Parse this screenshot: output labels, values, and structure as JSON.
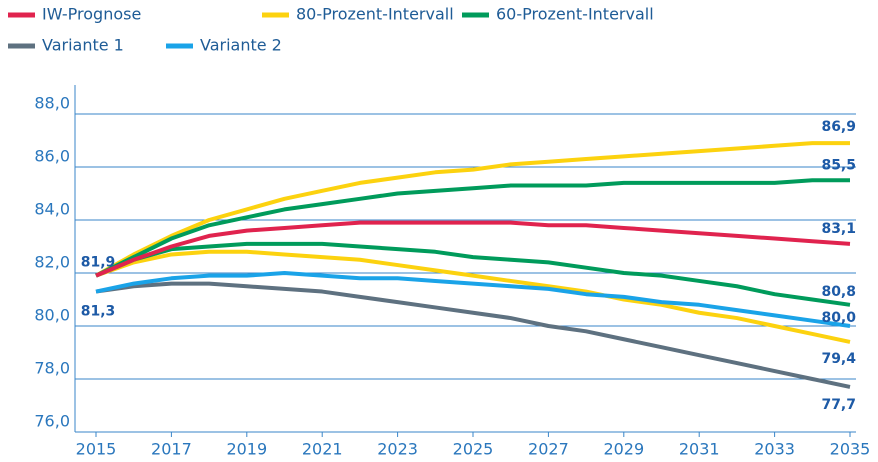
{
  "chart_data": {
    "type": "line",
    "x": [
      2015,
      2016,
      2017,
      2018,
      2019,
      2020,
      2021,
      2022,
      2023,
      2024,
      2025,
      2026,
      2027,
      2028,
      2029,
      2030,
      2031,
      2032,
      2033,
      2034,
      2035
    ],
    "xlim": [
      2015,
      2035
    ],
    "xticks": [
      2015,
      2017,
      2019,
      2021,
      2023,
      2025,
      2027,
      2029,
      2031,
      2033,
      2035
    ],
    "ylim": [
      76,
      88
    ],
    "yticks": [
      {
        "value": 76,
        "label": "76,0"
      },
      {
        "value": 78,
        "label": "78,0"
      },
      {
        "value": 80,
        "label": "80,0"
      },
      {
        "value": 82,
        "label": "82,0"
      },
      {
        "value": 84,
        "label": "84,0"
      },
      {
        "value": 86,
        "label": "86,0"
      },
      {
        "value": 88,
        "label": "88,0"
      }
    ],
    "grid": true,
    "series": [
      {
        "name": "IW-Prognose",
        "color": "#e0234e",
        "values": [
          81.9,
          82.5,
          83.0,
          83.4,
          83.6,
          83.7,
          83.8,
          83.9,
          83.9,
          83.9,
          83.9,
          83.9,
          83.8,
          83.8,
          83.7,
          83.6,
          83.5,
          83.4,
          83.3,
          83.2,
          83.1
        ],
        "value_labels": [
          "81,9",
          null,
          null,
          null,
          null,
          null,
          null,
          null,
          null,
          null,
          null,
          null,
          null,
          null,
          null,
          null,
          null,
          null,
          null,
          null,
          "83,1"
        ]
      },
      {
        "name": "80-Prozent-Intervall",
        "color": "#fcd20f",
        "values": [
          81.9,
          82.7,
          83.4,
          84.0,
          84.4,
          84.8,
          85.1,
          85.4,
          85.6,
          85.8,
          85.9,
          86.1,
          86.2,
          86.3,
          86.4,
          86.5,
          86.6,
          86.7,
          86.8,
          86.9,
          86.9
        ],
        "value_labels": [
          null,
          null,
          null,
          null,
          null,
          null,
          null,
          null,
          null,
          null,
          null,
          null,
          null,
          null,
          null,
          null,
          null,
          null,
          null,
          null,
          "86,9"
        ],
        "lower_values": [
          81.9,
          82.4,
          82.7,
          82.8,
          82.8,
          82.7,
          82.6,
          82.5,
          82.3,
          82.1,
          81.9,
          81.7,
          81.5,
          81.3,
          81.0,
          80.8,
          80.5,
          80.3,
          80.0,
          79.7,
          79.4
        ],
        "lower_value_labels": [
          null,
          null,
          null,
          null,
          null,
          null,
          null,
          null,
          null,
          null,
          null,
          null,
          null,
          null,
          null,
          null,
          null,
          null,
          null,
          null,
          "79,4"
        ]
      },
      {
        "name": "60-Prozent-Intervall",
        "color": "#009b5b",
        "values": [
          81.9,
          82.6,
          83.3,
          83.8,
          84.1,
          84.4,
          84.6,
          84.8,
          85.0,
          85.1,
          85.2,
          85.3,
          85.3,
          85.3,
          85.4,
          85.4,
          85.4,
          85.4,
          85.4,
          85.5,
          85.5
        ],
        "value_labels": [
          null,
          null,
          null,
          null,
          null,
          null,
          null,
          null,
          null,
          null,
          null,
          null,
          null,
          null,
          null,
          null,
          null,
          null,
          null,
          null,
          "85,5"
        ],
        "lower_values": [
          81.9,
          82.5,
          82.9,
          83.0,
          83.1,
          83.1,
          83.1,
          83.0,
          82.9,
          82.8,
          82.6,
          82.5,
          82.4,
          82.2,
          82.0,
          81.9,
          81.7,
          81.5,
          81.2,
          81.0,
          80.8
        ],
        "lower_value_labels": [
          null,
          null,
          null,
          null,
          null,
          null,
          null,
          null,
          null,
          null,
          null,
          null,
          null,
          null,
          null,
          null,
          null,
          null,
          null,
          null,
          "80,8"
        ]
      },
      {
        "name": "Variante 1",
        "color": "#5e7180",
        "values": [
          81.3,
          81.5,
          81.6,
          81.6,
          81.5,
          81.4,
          81.3,
          81.1,
          80.9,
          80.7,
          80.5,
          80.3,
          80.0,
          79.8,
          79.5,
          79.2,
          78.9,
          78.6,
          78.3,
          78.0,
          77.7
        ],
        "value_labels": [
          "81,3",
          null,
          null,
          null,
          null,
          null,
          null,
          null,
          null,
          null,
          null,
          null,
          null,
          null,
          null,
          null,
          null,
          null,
          null,
          null,
          "77,7"
        ]
      },
      {
        "name": "Variante 2",
        "color": "#1aa3e8",
        "values": [
          81.3,
          81.6,
          81.8,
          81.9,
          81.9,
          82.0,
          81.9,
          81.8,
          81.8,
          81.7,
          81.6,
          81.5,
          81.4,
          81.2,
          81.1,
          80.9,
          80.8,
          80.6,
          80.4,
          80.2,
          80.0
        ],
        "value_labels": [
          null,
          null,
          null,
          null,
          null,
          null,
          null,
          null,
          null,
          null,
          null,
          null,
          null,
          null,
          null,
          null,
          null,
          null,
          null,
          null,
          "80,0"
        ]
      }
    ]
  }
}
